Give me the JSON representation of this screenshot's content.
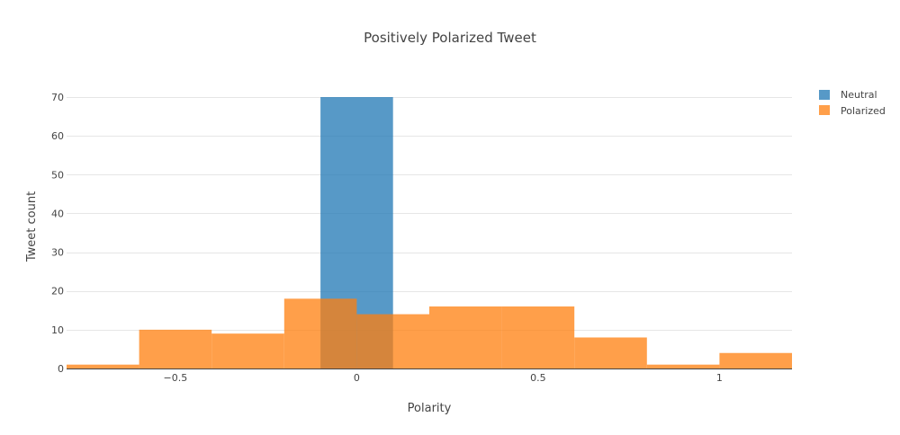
{
  "chart_data": {
    "type": "bar",
    "subtype": "overlaid-histogram",
    "title": "Positively Polarized Tweet",
    "xlabel": "Polarity",
    "ylabel": "Tweet count",
    "xlim": [
      -0.8,
      1.2
    ],
    "ylim": [
      0,
      70
    ],
    "xticks": [
      {
        "value": -0.5,
        "label": "−0.5"
      },
      {
        "value": 0,
        "label": "0"
      },
      {
        "value": 0.5,
        "label": "0.5"
      },
      {
        "value": 1,
        "label": "1"
      }
    ],
    "yticks": [
      {
        "value": 0,
        "label": "0"
      },
      {
        "value": 10,
        "label": "10"
      },
      {
        "value": 20,
        "label": "20"
      },
      {
        "value": 30,
        "label": "30"
      },
      {
        "value": 40,
        "label": "40"
      },
      {
        "value": 50,
        "label": "50"
      },
      {
        "value": 60,
        "label": "60"
      },
      {
        "value": 70,
        "label": "70"
      }
    ],
    "grid": true,
    "legend": "top-right",
    "series": [
      {
        "name": "Neutral",
        "color": "#1f77b4",
        "bins": [
          {
            "x0": -0.1,
            "x1": 0.1,
            "count": 70
          }
        ]
      },
      {
        "name": "Polarized",
        "color": "#ff7f0e",
        "bins": [
          {
            "x0": -0.8,
            "x1": -0.6,
            "count": 1
          },
          {
            "x0": -0.6,
            "x1": -0.4,
            "count": 10
          },
          {
            "x0": -0.4,
            "x1": -0.2,
            "count": 9
          },
          {
            "x0": -0.2,
            "x1": 0.0,
            "count": 18
          },
          {
            "x0": 0.0,
            "x1": 0.2,
            "count": 14
          },
          {
            "x0": 0.2,
            "x1": 0.4,
            "count": 16
          },
          {
            "x0": 0.4,
            "x1": 0.6,
            "count": 16
          },
          {
            "x0": 0.6,
            "x1": 0.8,
            "count": 8
          },
          {
            "x0": 0.8,
            "x1": 1.0,
            "count": 1
          },
          {
            "x0": 1.0,
            "x1": 1.2,
            "count": 4
          }
        ]
      }
    ]
  }
}
